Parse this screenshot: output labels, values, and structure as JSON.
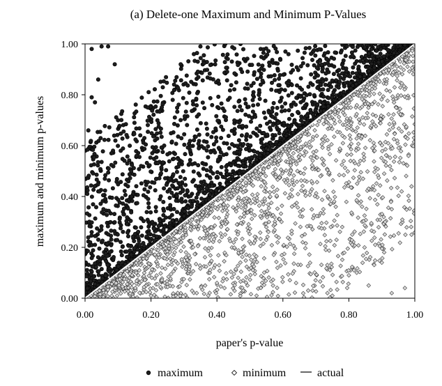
{
  "chart_data": {
    "type": "scatter",
    "title": "(a) Delete-one Maximum and Minimum P-Values",
    "xlabel": "paper's p-value",
    "ylabel": "maximum and minimum p-values",
    "xlim": [
      0,
      1
    ],
    "ylim": [
      0,
      1
    ],
    "x_ticks": [
      "0.00",
      "0.20",
      "0.40",
      "0.60",
      "0.80",
      "1.00"
    ],
    "y_ticks": [
      "0.00",
      "0.20",
      "0.40",
      "0.60",
      "0.80",
      "1.00"
    ],
    "grid": false,
    "legend_position": "bottom",
    "legend": [
      "maximum",
      "minimum",
      "actual"
    ],
    "colors": {
      "maximum": "#1e1e1e",
      "maximum_stroke": "#000000",
      "minimum": "#d8d8d8",
      "minimum_stroke": "#333333",
      "actual": "#ffffff"
    },
    "series": [
      {
        "name": "maximum",
        "marker": "filled-circle",
        "points": [
          [
            0.05,
            0.99
          ],
          [
            0.07,
            0.99
          ],
          [
            0.02,
            0.98
          ],
          [
            0.09,
            0.92
          ],
          [
            0.04,
            0.86
          ],
          [
            0.02,
            0.79
          ],
          [
            0.03,
            0.77
          ],
          [
            0.01,
            0.66
          ],
          [
            0.1,
            0.7
          ],
          [
            0.15,
            0.69
          ],
          [
            0.08,
            0.57
          ],
          [
            0.14,
            0.5
          ],
          [
            0.06,
            0.47
          ],
          [
            0.19,
            0.75
          ],
          [
            0.18,
            0.63
          ],
          [
            0.02,
            0.26
          ],
          [
            0.03,
            0.21
          ],
          [
            0.13,
            0.44
          ],
          [
            0.21,
            0.58
          ],
          [
            0.17,
            0.52
          ],
          [
            0.24,
            0.6
          ],
          [
            0.27,
            0.84
          ],
          [
            0.29,
            0.92
          ],
          [
            0.33,
            0.96
          ],
          [
            0.35,
            0.99
          ]
        ],
        "band": {
          "x_min": 0.0,
          "x_max": 1.0,
          "offset_min": 0.005,
          "offset_max": 0.62,
          "skew": 2.2,
          "count": 2200
        }
      },
      {
        "name": "minimum",
        "marker": "open-diamond",
        "points": [
          [
            0.4,
            0.06
          ],
          [
            0.48,
            0.03
          ],
          [
            0.52,
            0.01
          ],
          [
            0.57,
            0.05
          ],
          [
            0.64,
            0.06
          ],
          [
            0.69,
            0.03
          ],
          [
            0.75,
            0.01
          ],
          [
            0.8,
            0.09
          ],
          [
            0.86,
            0.05
          ],
          [
            0.9,
            0.14
          ],
          [
            0.93,
            0.02
          ],
          [
            0.97,
            0.04
          ],
          [
            0.99,
            0.25
          ],
          [
            0.96,
            0.42
          ],
          [
            0.91,
            0.3
          ],
          [
            0.88,
            0.21
          ],
          [
            0.84,
            0.36
          ],
          [
            0.78,
            0.28
          ],
          [
            0.73,
            0.19
          ],
          [
            0.66,
            0.22
          ]
        ],
        "band": {
          "x_min": 0.0,
          "x_max": 1.0,
          "offset_min": 0.005,
          "offset_max": 0.75,
          "skew": 2.0,
          "count": 1900
        }
      },
      {
        "name": "actual",
        "marker": "line",
        "points": [
          [
            0,
            0
          ],
          [
            1,
            1
          ]
        ]
      }
    ]
  }
}
